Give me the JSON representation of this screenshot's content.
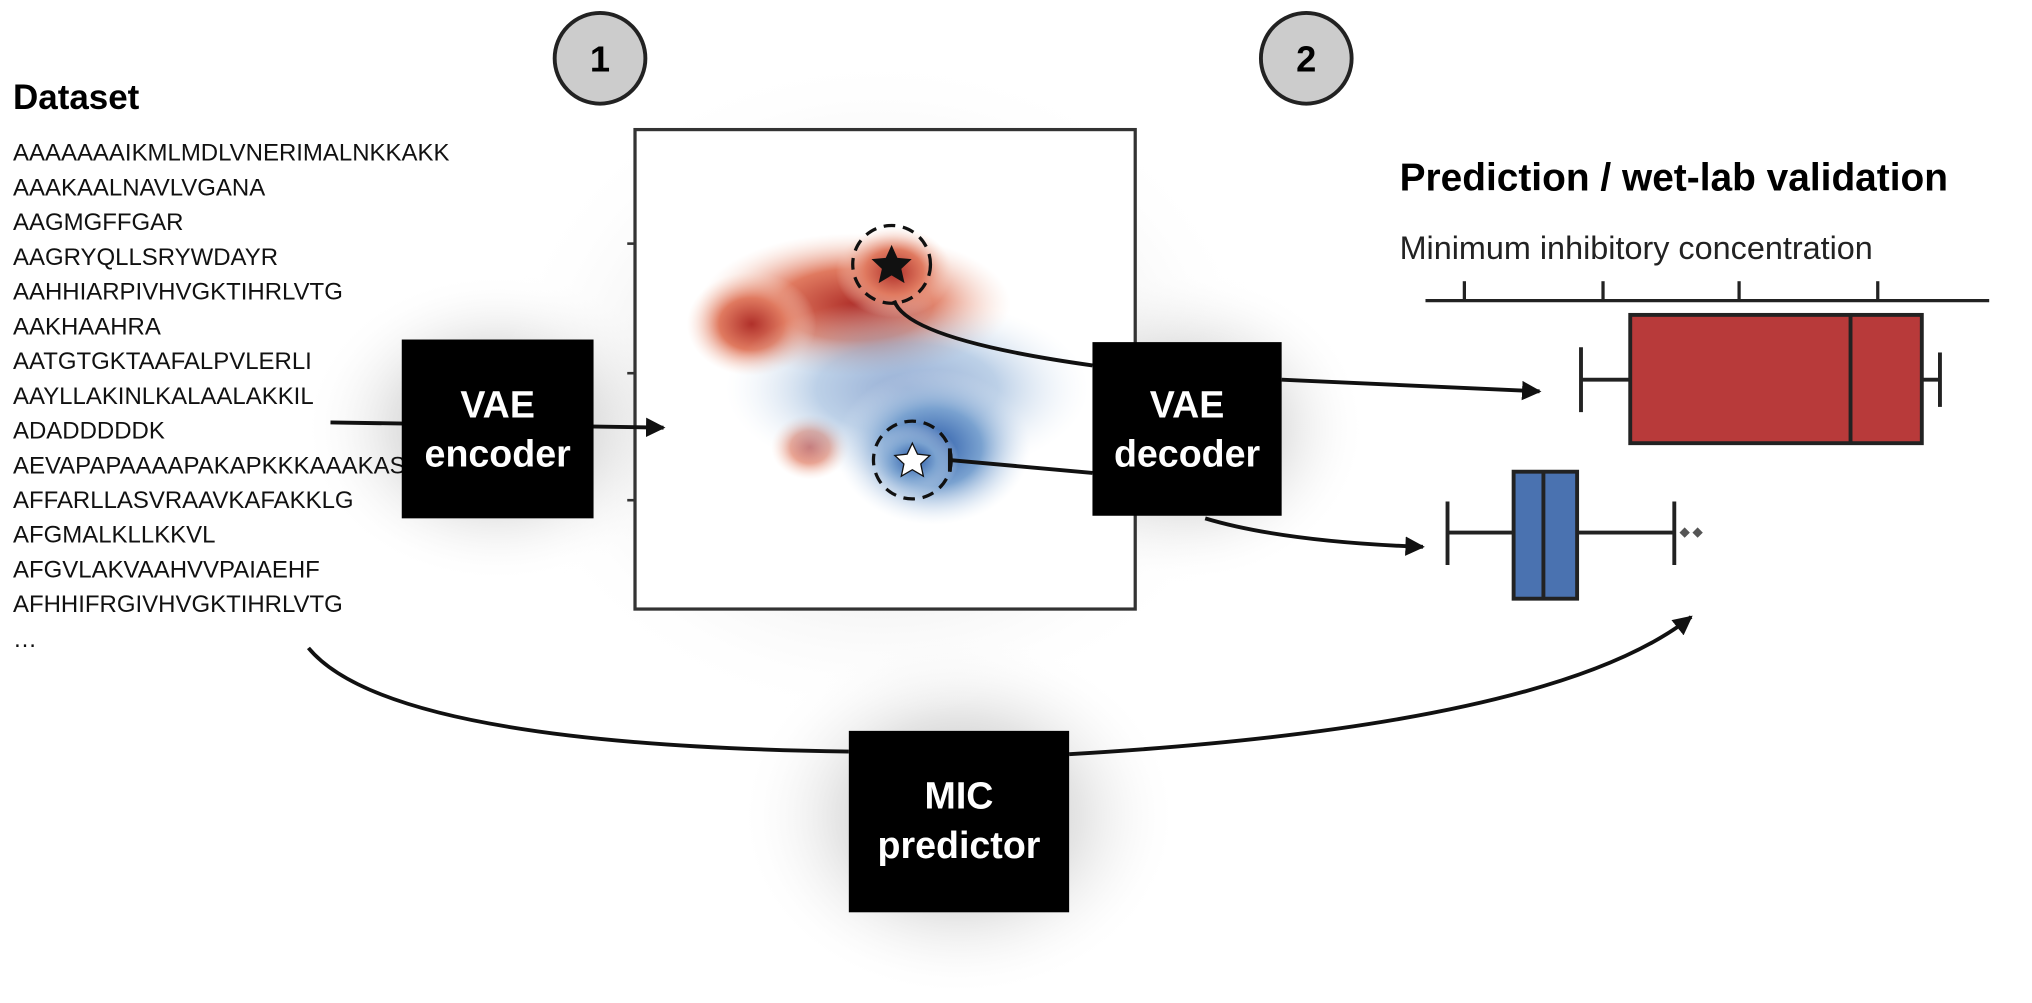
{
  "steps": [
    "1",
    "2"
  ],
  "dataset": {
    "title": "Dataset",
    "sequences": [
      "AAAAAAAIKMLMDLVNERIMALNKKAKK",
      "AAAKAALNAVLVGANA",
      "AAGMGFFGAR",
      "AAGRYQLLSRYWDAYR",
      "AAHHIARPIVHVGKTIHRLVTG",
      "AAKHAAHRA",
      "AATGTGKTAAFALPVLERLI",
      "AAYLLAKINLKALAALAKKIL",
      "ADADDDDDK",
      "AEVAPAPAAAAPAKAPKKKAAAKAS",
      "AFFARLLASVRAAVKAFAKKLG",
      "AFGMALKLLKKVL",
      "AFGVLAKVAAHVVPAIAEHF",
      "AFHHIFRGIVHVGKTIHRLVTG",
      "…"
    ]
  },
  "encoder": [
    "VAE",
    "encoder"
  ],
  "decoder": [
    "VAE",
    "decoder"
  ],
  "predictor": [
    "MIC",
    "predictor"
  ],
  "prediction": {
    "title": "Prediction / wet-lab validation",
    "axis_label": "Minimum inhibitory concentration"
  }
}
